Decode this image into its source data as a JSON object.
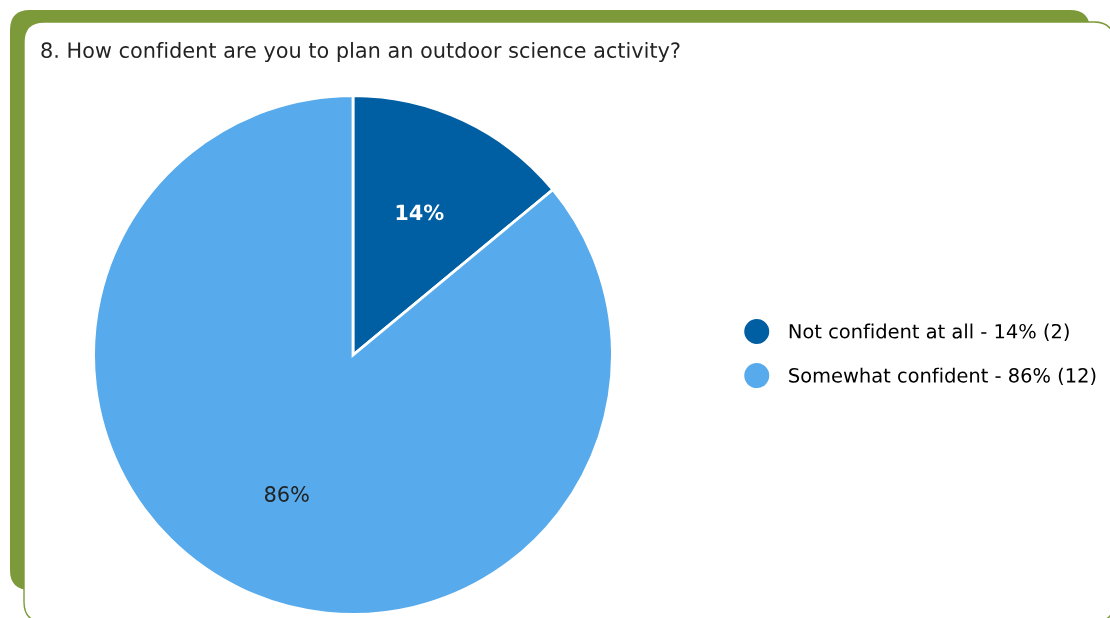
{
  "chart_data": {
    "type": "pie",
    "title": "8. How confident are you to plan an outdoor science activity?",
    "categories": [
      "Not confident at all - 14% (2)",
      "Somewhat confident - 86% (12)"
    ],
    "values": [
      14,
      86
    ],
    "colors": [
      "#005ea2",
      "#57aaeb"
    ],
    "value_labels": [
      "14%",
      "86%"
    ],
    "legend": "right"
  }
}
